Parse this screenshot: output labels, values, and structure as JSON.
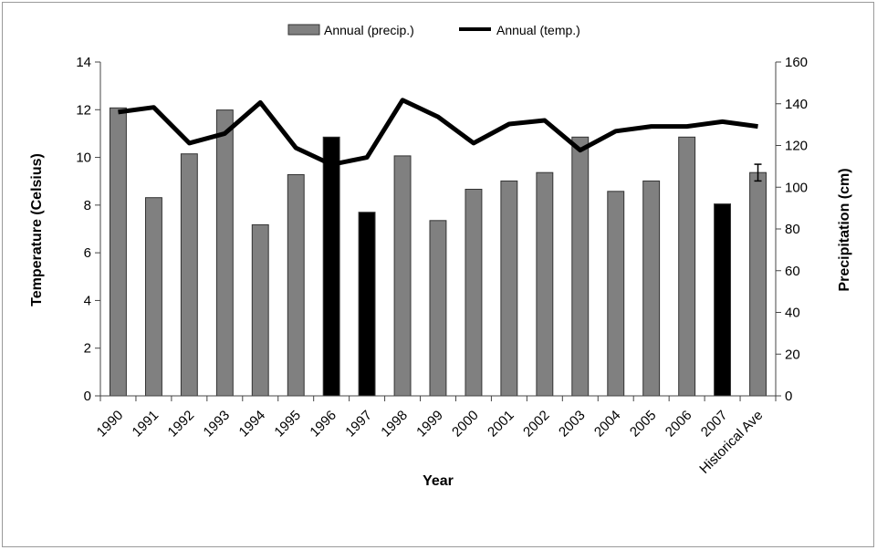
{
  "chart_data": {
    "type": "bar",
    "categories": [
      "1990",
      "1991",
      "1992",
      "1993",
      "1994",
      "1995",
      "1996",
      "1997",
      "1998",
      "1999",
      "2000",
      "2001",
      "2002",
      "2003",
      "2004",
      "2005",
      "2006",
      "2007",
      "Historical Ave"
    ],
    "series": [
      {
        "name": "Annual (precip.)",
        "type": "bar",
        "axis": "right",
        "values": [
          138,
          95,
          116,
          137,
          82,
          106,
          124,
          88,
          115,
          84,
          99,
          103,
          107,
          124,
          98,
          103,
          124,
          92,
          107
        ],
        "colors": [
          "#808080",
          "#808080",
          "#808080",
          "#808080",
          "#808080",
          "#808080",
          "#000000",
          "#000000",
          "#808080",
          "#808080",
          "#808080",
          "#808080",
          "#808080",
          "#808080",
          "#808080",
          "#808080",
          "#808080",
          "#000000",
          "#808080"
        ],
        "error_bar": {
          "category": "Historical Ave",
          "plus_minus": 4
        }
      },
      {
        "name": "Annual (temp.)",
        "type": "line",
        "axis": "left",
        "values": [
          11.9,
          12.1,
          10.6,
          11.0,
          12.3,
          10.4,
          9.7,
          10.0,
          12.4,
          11.7,
          10.6,
          11.4,
          11.55,
          10.3,
          11.1,
          11.3,
          11.3,
          11.5,
          11.3
        ]
      }
    ],
    "xlabel": "Year",
    "ylabel": "Temperature (Celsius)",
    "y2label": "Precipitation (cm)",
    "ylim": [
      0,
      14
    ],
    "y2lim": [
      0,
      160
    ],
    "yticks": [
      "0",
      "2",
      "4",
      "6",
      "8",
      "10",
      "12",
      "14"
    ],
    "y2ticks": [
      "0",
      "20",
      "40",
      "60",
      "80",
      "100",
      "120",
      "140",
      "160"
    ],
    "legend_position": "top-center",
    "grid": false,
    "colors": {
      "bar": "#808080",
      "bar_highlight": "#000000",
      "line": "#000000"
    }
  }
}
